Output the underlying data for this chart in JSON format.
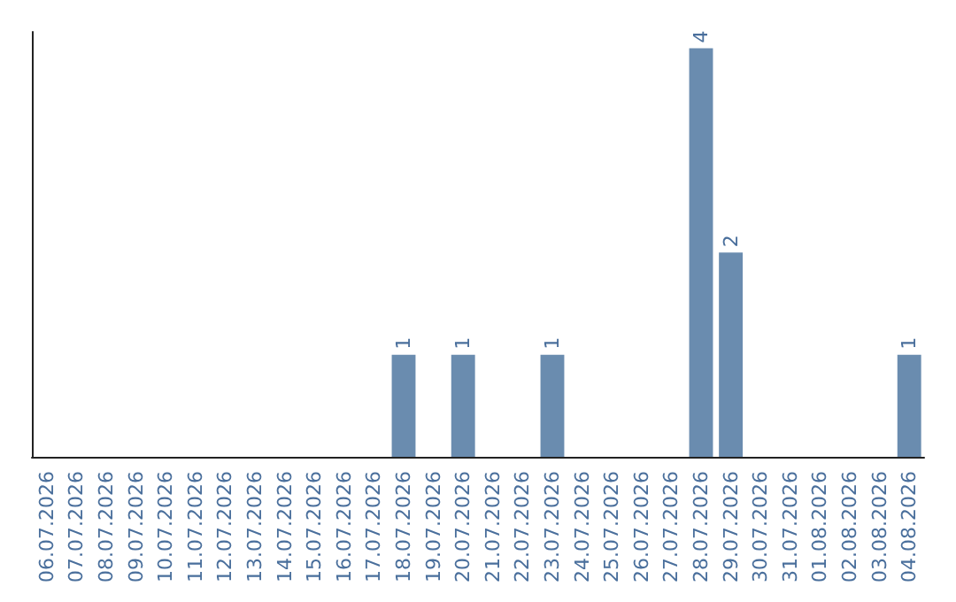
{
  "chart_data": {
    "type": "bar",
    "categories": [
      "06.07.2026",
      "07.07.2026",
      "08.07.2026",
      "09.07.2026",
      "10.07.2026",
      "11.07.2026",
      "12.07.2026",
      "13.07.2026",
      "14.07.2026",
      "15.07.2026",
      "16.07.2026",
      "17.07.2026",
      "18.07.2026",
      "19.07.2026",
      "20.07.2026",
      "21.07.2026",
      "22.07.2026",
      "23.07.2026",
      "24.07.2026",
      "25.07.2026",
      "26.07.2026",
      "27.07.2026",
      "28.07.2026",
      "29.07.2026",
      "30.07.2026",
      "31.07.2026",
      "01.08.2026",
      "02.08.2026",
      "03.08.2026",
      "04.08.2026"
    ],
    "values": [
      null,
      null,
      null,
      null,
      null,
      null,
      null,
      null,
      null,
      null,
      null,
      null,
      1,
      null,
      1,
      null,
      null,
      1,
      null,
      null,
      null,
      null,
      4,
      2,
      null,
      null,
      null,
      null,
      null,
      1
    ],
    "color": "#6a8caf",
    "data_labels": true,
    "tick_labels": "x",
    "grid": false
  }
}
